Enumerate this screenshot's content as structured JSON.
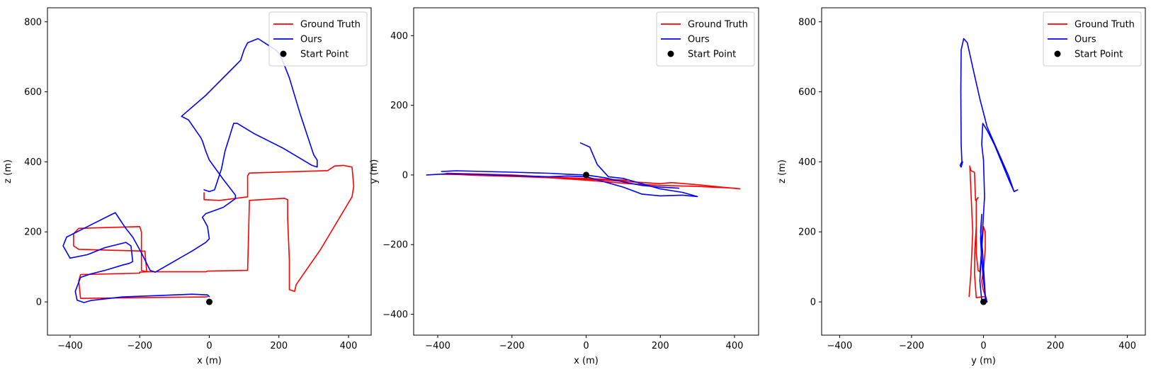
{
  "chart_data": [
    {
      "type": "line",
      "xlabel": "x (m)",
      "ylabel": "z (m)",
      "xlim": [
        -465,
        465
      ],
      "ylim": [
        -95,
        840
      ],
      "xticks": [
        -400,
        -200,
        0,
        200,
        400
      ],
      "yticks": [
        0,
        200,
        400,
        600,
        800
      ],
      "xtick_labels": [
        "−400",
        "−200",
        "0",
        "200",
        "400"
      ],
      "ytick_labels": [
        "0",
        "200",
        "400",
        "600",
        "800"
      ],
      "legend_position": "top-right",
      "start_point": [
        0,
        0
      ],
      "series": [
        {
          "name": "Ground Truth",
          "color": "#ff0000",
          "points": [
            [
              -5,
              15
            ],
            [
              -10,
              14
            ],
            [
              -200,
              12
            ],
            [
              -370,
              10
            ],
            [
              -375,
              60
            ],
            [
              -370,
              78
            ],
            [
              -200,
              82
            ],
            [
              -200,
              85
            ],
            [
              -175,
              86
            ],
            [
              -180,
              88
            ],
            [
              -185,
              145
            ],
            [
              -375,
              150
            ],
            [
              -390,
              160
            ],
            [
              -390,
              195
            ],
            [
              -375,
              210
            ],
            [
              -200,
              215
            ],
            [
              -195,
              200
            ],
            [
              -195,
              90
            ],
            [
              -180,
              86
            ],
            [
              -10,
              86
            ],
            [
              -5,
              88
            ],
            [
              110,
              90
            ],
            [
              115,
              280
            ],
            [
              115,
              290
            ],
            [
              215,
              296
            ],
            [
              225,
              292
            ],
            [
              225,
              240
            ],
            [
              230,
              120
            ],
            [
              230,
              35
            ],
            [
              245,
              30
            ],
            [
              250,
              50
            ],
            [
              320,
              150
            ],
            [
              380,
              250
            ],
            [
              410,
              300
            ],
            [
              415,
              330
            ],
            [
              410,
              385
            ],
            [
              385,
              390
            ],
            [
              360,
              388
            ],
            [
              340,
              375
            ],
            [
              115,
              368
            ],
            [
              110,
              360
            ],
            [
              110,
              300
            ],
            [
              30,
              290
            ],
            [
              -15,
              292
            ],
            [
              -15,
              312
            ]
          ]
        },
        {
          "name": "Ours",
          "color": "#0000ff",
          "points": [
            [
              0,
              15
            ],
            [
              -5,
              20
            ],
            [
              -50,
              22
            ],
            [
              -150,
              18
            ],
            [
              -250,
              14
            ],
            [
              -340,
              4
            ],
            [
              -360,
              -2
            ],
            [
              -380,
              5
            ],
            [
              -385,
              30
            ],
            [
              -370,
              70
            ],
            [
              -340,
              80
            ],
            [
              -300,
              90
            ],
            [
              -250,
              105
            ],
            [
              -230,
              110
            ],
            [
              -220,
              115
            ],
            [
              -225,
              160
            ],
            [
              -240,
              170
            ],
            [
              -300,
              155
            ],
            [
              -350,
              135
            ],
            [
              -400,
              125
            ],
            [
              -420,
              160
            ],
            [
              -410,
              185
            ],
            [
              -350,
              215
            ],
            [
              -280,
              250
            ],
            [
              -270,
              255
            ],
            [
              -260,
              240
            ],
            [
              -240,
              210
            ],
            [
              -220,
              185
            ],
            [
              -195,
              140
            ],
            [
              -170,
              90
            ],
            [
              -155,
              85
            ],
            [
              -120,
              105
            ],
            [
              -50,
              145
            ],
            [
              -10,
              170
            ],
            [
              0,
              180
            ],
            [
              -5,
              215
            ],
            [
              -20,
              242
            ],
            [
              -10,
              252
            ],
            [
              40,
              270
            ],
            [
              75,
              295
            ],
            [
              75,
              305
            ],
            [
              40,
              350
            ],
            [
              0,
              405
            ],
            [
              -10,
              430
            ],
            [
              -20,
              460
            ],
            [
              -25,
              470
            ],
            [
              -60,
              520
            ],
            [
              -80,
              530
            ],
            [
              -10,
              590
            ],
            [
              70,
              670
            ],
            [
              90,
              690
            ],
            [
              100,
              720
            ],
            [
              110,
              740
            ],
            [
              140,
              752
            ],
            [
              190,
              720
            ],
            [
              200,
              710
            ],
            [
              210,
              690
            ],
            [
              230,
              640
            ],
            [
              260,
              540
            ],
            [
              290,
              450
            ],
            [
              300,
              420
            ],
            [
              310,
              405
            ],
            [
              310,
              385
            ],
            [
              295,
              390
            ],
            [
              210,
              440
            ],
            [
              130,
              480
            ],
            [
              80,
              510
            ],
            [
              70,
              510
            ],
            [
              45,
              430
            ],
            [
              35,
              380
            ],
            [
              15,
              320
            ],
            [
              0,
              315
            ],
            [
              -15,
              320
            ]
          ]
        },
        {
          "name": "Start Point",
          "color": "#000000",
          "marker": "point"
        }
      ]
    },
    {
      "type": "line",
      "xlabel": "x (m)",
      "ylabel": "y (m)",
      "xlim": [
        -465,
        465
      ],
      "ylim": [
        -460,
        480
      ],
      "xticks": [
        -400,
        -200,
        0,
        200,
        400
      ],
      "yticks": [
        -400,
        -200,
        0,
        200,
        400
      ],
      "xtick_labels": [
        "−400",
        "−200",
        "0",
        "200",
        "400"
      ],
      "ytick_labels": [
        "−400",
        "−200",
        "0",
        "200",
        "400"
      ],
      "legend_position": "top-right",
      "start_point": [
        0,
        0
      ],
      "series": [
        {
          "name": "Ground Truth",
          "color": "#ff0000",
          "points": [
            [
              -390,
              2
            ],
            [
              -300,
              1
            ],
            [
              -200,
              -3
            ],
            [
              -100,
              -8
            ],
            [
              0,
              -12
            ],
            [
              100,
              -18
            ],
            [
              200,
              -25
            ],
            [
              230,
              -22
            ],
            [
              300,
              -28
            ],
            [
              415,
              -40
            ],
            [
              400,
              -38
            ],
            [
              300,
              -33
            ],
            [
              200,
              -30
            ],
            [
              115,
              -25
            ],
            [
              0,
              -15
            ],
            [
              -100,
              -8
            ],
            [
              -200,
              -4
            ],
            [
              -300,
              -1
            ],
            [
              -380,
              3
            ],
            [
              -375,
              5
            ],
            [
              -200,
              0
            ],
            [
              -100,
              -6
            ],
            [
              0,
              -10
            ],
            [
              110,
              -15
            ]
          ]
        },
        {
          "name": "Ours",
          "color": "#0000ff",
          "points": [
            [
              -430,
              0
            ],
            [
              -380,
              3
            ],
            [
              -300,
              2
            ],
            [
              -200,
              -2
            ],
            [
              -100,
              -5
            ],
            [
              -50,
              -3
            ],
            [
              0,
              -5
            ],
            [
              50,
              -20
            ],
            [
              100,
              -35
            ],
            [
              150,
              -55
            ],
            [
              200,
              -60
            ],
            [
              260,
              -58
            ],
            [
              300,
              -62
            ],
            [
              260,
              -50
            ],
            [
              200,
              -40
            ],
            [
              150,
              -25
            ],
            [
              100,
              -10
            ],
            [
              60,
              -5
            ],
            [
              30,
              30
            ],
            [
              10,
              80
            ],
            [
              -15,
              92
            ]
          ]
        },
        {
          "name": "Ours",
          "color": "#0000ff",
          "points": [
            [
              -390,
              10
            ],
            [
              -350,
              12
            ],
            [
              -200,
              8
            ],
            [
              -100,
              5
            ],
            [
              -50,
              2
            ],
            [
              0,
              0
            ],
            [
              50,
              -8
            ],
            [
              100,
              -20
            ],
            [
              150,
              -30
            ],
            [
              200,
              -35
            ],
            [
              250,
              -38
            ]
          ]
        },
        {
          "name": "Start Point",
          "color": "#000000",
          "marker": "point"
        }
      ]
    },
    {
      "type": "line",
      "xlabel": "y (m)",
      "ylabel": "z (m)",
      "xlim": [
        -450,
        450
      ],
      "ylim": [
        -95,
        840
      ],
      "xticks": [
        -400,
        -200,
        0,
        200,
        400
      ],
      "yticks": [
        0,
        200,
        400,
        600,
        800
      ],
      "xtick_labels": [
        "−400",
        "−200",
        "0",
        "200",
        "400"
      ],
      "ytick_labels": [
        "0",
        "200",
        "400",
        "600",
        "800"
      ],
      "legend_position": "top-right",
      "start_point": [
        0,
        0
      ],
      "series": [
        {
          "name": "Ground Truth",
          "color": "#ff0000",
          "points": [
            [
              -40,
              15
            ],
            [
              -35,
              80
            ],
            [
              -30,
              200
            ],
            [
              -38,
              388
            ],
            [
              -35,
              375
            ],
            [
              -25,
              370
            ],
            [
              -22,
              290
            ],
            [
              -15,
              298
            ],
            [
              -20,
              290
            ],
            [
              -20,
              140
            ],
            [
              -15,
              90
            ],
            [
              -10,
              86
            ],
            [
              -5,
              150
            ],
            [
              0,
              215
            ],
            [
              5,
              200
            ],
            [
              5,
              150
            ],
            [
              0,
              90
            ],
            [
              -5,
              60
            ],
            [
              -2,
              40
            ],
            [
              5,
              15
            ],
            [
              -5,
              14
            ],
            [
              -20,
              12
            ],
            [
              -25,
              80
            ],
            [
              -24,
              150
            ],
            [
              -20,
              215
            ]
          ]
        },
        {
          "name": "Ours",
          "color": "#0000ff",
          "points": [
            [
              5,
              0
            ],
            [
              5,
              20
            ],
            [
              0,
              60
            ],
            [
              -5,
              120
            ],
            [
              -8,
              180
            ],
            [
              -5,
              250
            ],
            [
              -8,
              200
            ],
            [
              -3,
              150
            ],
            [
              0,
              100
            ],
            [
              5,
              20
            ],
            [
              10,
              0
            ],
            [
              -5,
              5
            ],
            [
              -10,
              60
            ],
            [
              -5,
              160
            ],
            [
              0,
              250
            ],
            [
              3,
              300
            ],
            [
              0,
              405
            ],
            [
              -5,
              450
            ],
            [
              -2,
              510
            ],
            [
              10,
              490
            ],
            [
              30,
              450
            ],
            [
              50,
              400
            ],
            [
              70,
              350
            ],
            [
              85,
              315
            ],
            [
              95,
              320
            ],
            [
              85,
              315
            ],
            [
              70,
              360
            ],
            [
              40,
              430
            ],
            [
              10,
              500
            ],
            [
              -10,
              580
            ],
            [
              -30,
              670
            ],
            [
              -45,
              740
            ],
            [
              -55,
              752
            ],
            [
              -62,
              720
            ],
            [
              -63,
              600
            ],
            [
              -62,
              450
            ],
            [
              -60,
              400
            ],
            [
              -65,
              390
            ],
            [
              -62,
              385
            ],
            [
              -58,
              400
            ]
          ]
        },
        {
          "name": "Start Point",
          "color": "#000000",
          "marker": "point"
        }
      ]
    }
  ]
}
